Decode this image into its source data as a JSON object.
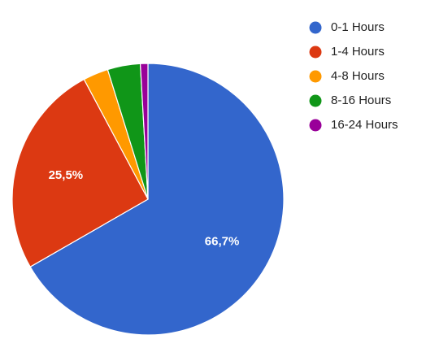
{
  "chart_data": {
    "type": "pie",
    "title": "",
    "legend_position": "right",
    "slice_labels": [
      "66,7%",
      "25,5%",
      "",
      "",
      ""
    ],
    "series": [
      {
        "slices": [
          {
            "label": "0-1 Hours",
            "value": 66.7,
            "color": "#3366cc"
          },
          {
            "label": "1-4 Hours",
            "value": 25.5,
            "color": "#dc3912"
          },
          {
            "label": "4-8 Hours",
            "value": 3.0,
            "color": "#ff9900"
          },
          {
            "label": "8-16 Hours",
            "value": 3.9,
            "color": "#109618"
          },
          {
            "label": "16-24 Hours",
            "value": 0.9,
            "color": "#990099"
          }
        ]
      }
    ]
  }
}
